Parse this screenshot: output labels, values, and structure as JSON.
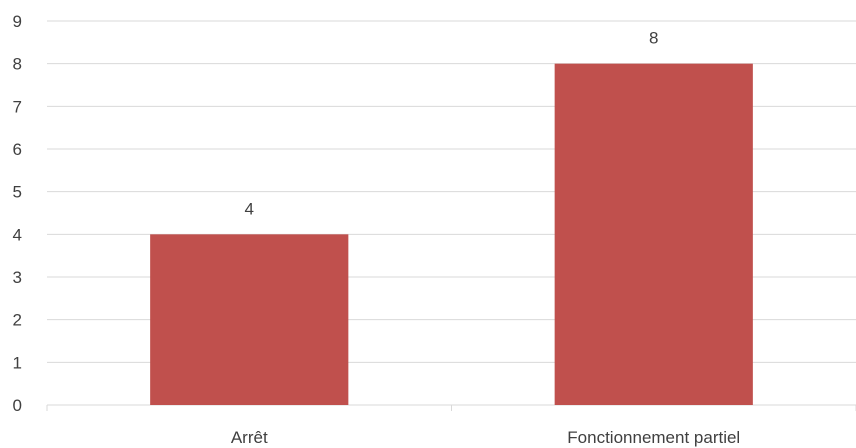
{
  "chart_data": {
    "type": "bar",
    "categories": [
      "Arrêt",
      "Fonctionnement partiel"
    ],
    "values": [
      4,
      8
    ],
    "data_labels": [
      "4",
      "8"
    ],
    "y_ticks": [
      "0",
      "1",
      "2",
      "3",
      "4",
      "5",
      "6",
      "7",
      "8",
      "9"
    ],
    "ylim": [
      0,
      9
    ],
    "grid": true,
    "legend": "none",
    "title": "",
    "xlabel": "",
    "ylabel": "",
    "colors": {
      "bar": "#c0504d",
      "grid": "#d9d9d9",
      "axis": "#d9d9d9",
      "text": "#404040"
    }
  }
}
